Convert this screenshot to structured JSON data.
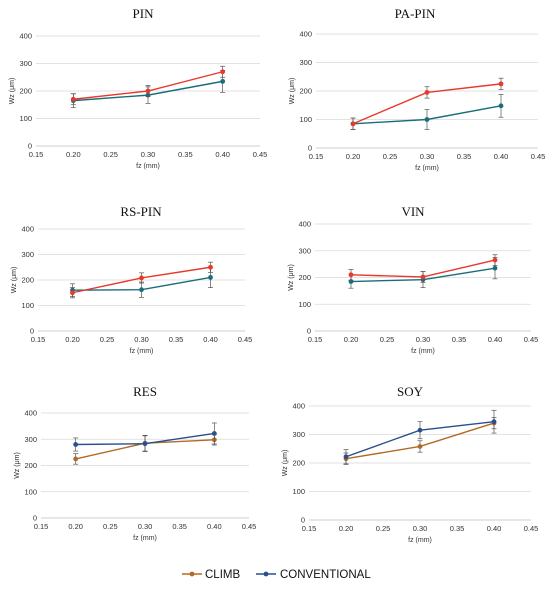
{
  "colors": {
    "climb": "#e8392b",
    "conventional": "#1a6e7a",
    "climb_bottom": "#b36a25",
    "conventional_bottom": "#2a4f8f",
    "grid": "#d9d9d9",
    "axis": "#bfbfbf"
  },
  "legend": {
    "climb": "CLIMB",
    "conventional": "CONVENTIONAL"
  },
  "chart_data": [
    {
      "type": "line",
      "title": "PIN",
      "xlabel": "fz (mm)",
      "ylabel": "Wz (μm)",
      "xlim": [
        0.15,
        0.45
      ],
      "ylim": [
        0,
        400
      ],
      "xticks": [
        "0.15",
        "0.20",
        "0.25",
        "0.30",
        "0.35",
        "0.40",
        "0.45"
      ],
      "yticks": [
        "0",
        "100",
        "200",
        "300",
        "400"
      ],
      "x": [
        0.2,
        0.3,
        0.4
      ],
      "series": [
        {
          "name": "CLIMB",
          "values": [
            170,
            200,
            270
          ],
          "errors": [
            20,
            20,
            20
          ]
        },
        {
          "name": "CONVENTIONAL",
          "values": [
            165,
            185,
            235
          ],
          "errors": [
            25,
            30,
            40
          ]
        }
      ]
    },
    {
      "type": "line",
      "title": "PA-PIN",
      "xlabel": "fz (mm)",
      "ylabel": "Wz (μm)",
      "xlim": [
        0.15,
        0.45
      ],
      "ylim": [
        0,
        400
      ],
      "xticks": [
        "0.15",
        "0.20",
        "0.25",
        "0.30",
        "0.35",
        "0.40",
        "0.45"
      ],
      "yticks": [
        "0",
        "100",
        "200",
        "300",
        "400"
      ],
      "x": [
        0.2,
        0.3,
        0.4
      ],
      "series": [
        {
          "name": "CLIMB",
          "values": [
            85,
            195,
            225
          ],
          "errors": [
            20,
            20,
            20
          ]
        },
        {
          "name": "CONVENTIONAL",
          "values": [
            85,
            100,
            148
          ],
          "errors": [
            20,
            35,
            40
          ]
        }
      ]
    },
    {
      "type": "line",
      "title": "RS-PIN",
      "xlabel": "fz (mm)",
      "ylabel": "Wz (μm)",
      "xlim": [
        0.15,
        0.45
      ],
      "ylim": [
        0,
        400
      ],
      "xticks": [
        "0.15",
        "0.20",
        "0.25",
        "0.30",
        "0.35",
        "0.40",
        "0.45"
      ],
      "yticks": [
        "0",
        "100",
        "200",
        "300",
        "400"
      ],
      "x": [
        0.2,
        0.3,
        0.4
      ],
      "series": [
        {
          "name": "CLIMB",
          "values": [
            150,
            208,
            250
          ],
          "errors": [
            20,
            20,
            20
          ]
        },
        {
          "name": "CONVENTIONAL",
          "values": [
            160,
            162,
            210
          ],
          "errors": [
            25,
            30,
            40
          ]
        }
      ]
    },
    {
      "type": "line",
      "title": "VIN",
      "xlabel": "fz (mm)",
      "ylabel": "Wz (μm)",
      "xlim": [
        0.15,
        0.45
      ],
      "ylim": [
        0,
        400
      ],
      "xticks": [
        "0.15",
        "0.20",
        "0.25",
        "0.30",
        "0.35",
        "0.40",
        "0.45"
      ],
      "yticks": [
        "0",
        "100",
        "200",
        "300",
        "400"
      ],
      "x": [
        0.2,
        0.3,
        0.4
      ],
      "series": [
        {
          "name": "CLIMB",
          "values": [
            210,
            202,
            265
          ],
          "errors": [
            20,
            20,
            20
          ]
        },
        {
          "name": "CONVENTIONAL",
          "values": [
            185,
            192,
            235
          ],
          "errors": [
            25,
            30,
            40
          ]
        }
      ]
    },
    {
      "type": "line",
      "title": "RES",
      "xlabel": "fz (mm)",
      "ylabel": "Wz (μm)",
      "xlim": [
        0.15,
        0.45
      ],
      "ylim": [
        0,
        400
      ],
      "xticks": [
        "0.15",
        "0.20",
        "0.25",
        "0.30",
        "0.35",
        "0.40",
        "0.45"
      ],
      "yticks": [
        "0",
        "100",
        "200",
        "300",
        "400"
      ],
      "x": [
        0.2,
        0.3,
        0.4
      ],
      "series": [
        {
          "name": "CLIMB",
          "values": [
            225,
            285,
            298
          ],
          "errors": [
            20,
            30,
            20
          ]
        },
        {
          "name": "CONVENTIONAL",
          "values": [
            280,
            283,
            322
          ],
          "errors": [
            25,
            30,
            40
          ]
        }
      ]
    },
    {
      "type": "line",
      "title": "SOY",
      "xlabel": "fz (mm)",
      "ylabel": "Wz (μm)",
      "xlim": [
        0.15,
        0.45
      ],
      "ylim": [
        0,
        400
      ],
      "xticks": [
        "0.15",
        "0.20",
        "0.25",
        "0.30",
        "0.35",
        "0.40",
        "0.45"
      ],
      "yticks": [
        "0",
        "100",
        "200",
        "300",
        "400"
      ],
      "x": [
        0.2,
        0.3,
        0.4
      ],
      "series": [
        {
          "name": "CLIMB",
          "values": [
            215,
            258,
            340
          ],
          "errors": [
            20,
            20,
            20
          ]
        },
        {
          "name": "CONVENTIONAL",
          "values": [
            222,
            315,
            345
          ],
          "errors": [
            25,
            30,
            40
          ]
        }
      ]
    }
  ]
}
